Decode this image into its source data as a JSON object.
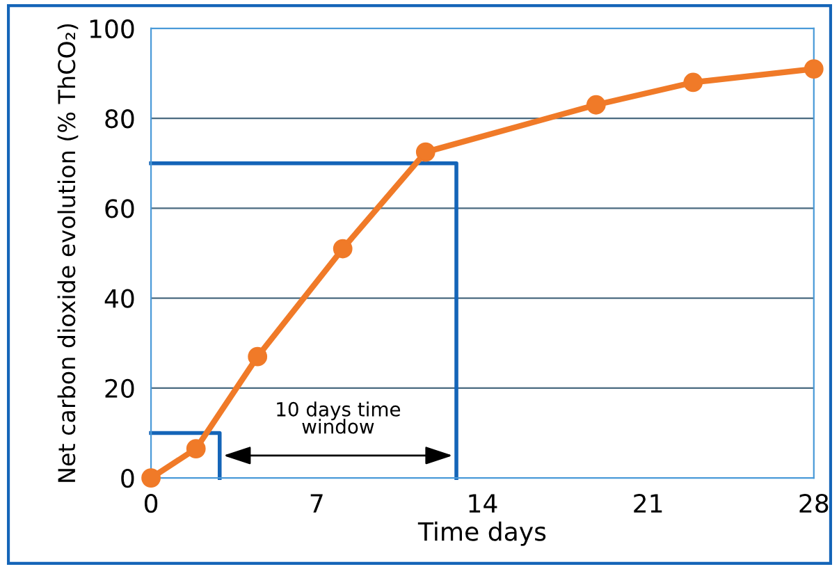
{
  "chart_data": {
    "type": "line",
    "xlabel": "Time days",
    "ylabel": "Net carbon dioxide evolution (% ThCO₂)",
    "series": [
      {
        "color": "#f07a28",
        "marker": "circle",
        "x": [
          0,
          1.9,
          4.5,
          8.1,
          11.6,
          18.8,
          22.9,
          28
        ],
        "values": [
          0,
          6.5,
          27,
          51,
          72.5,
          83,
          88,
          91
        ]
      },
      {
        "color": "#1565b8",
        "marker": "none",
        "x": [
          0,
          2.9,
          2.9
        ],
        "values": [
          10,
          10,
          0
        ]
      },
      {
        "color": "#1565b8",
        "marker": "none",
        "x": [
          0,
          12.9,
          12.9
        ],
        "values": [
          70,
          70,
          0
        ]
      }
    ],
    "annotations": [
      "10 days time\nwindow"
    ],
    "xlim": [
      0,
      28
    ],
    "ylim": [
      0,
      100
    ],
    "xticks": [
      0,
      7,
      14,
      21,
      28
    ],
    "yticks": [
      0,
      20,
      40,
      60,
      80,
      100
    ],
    "grid": "y",
    "legend": false
  }
}
